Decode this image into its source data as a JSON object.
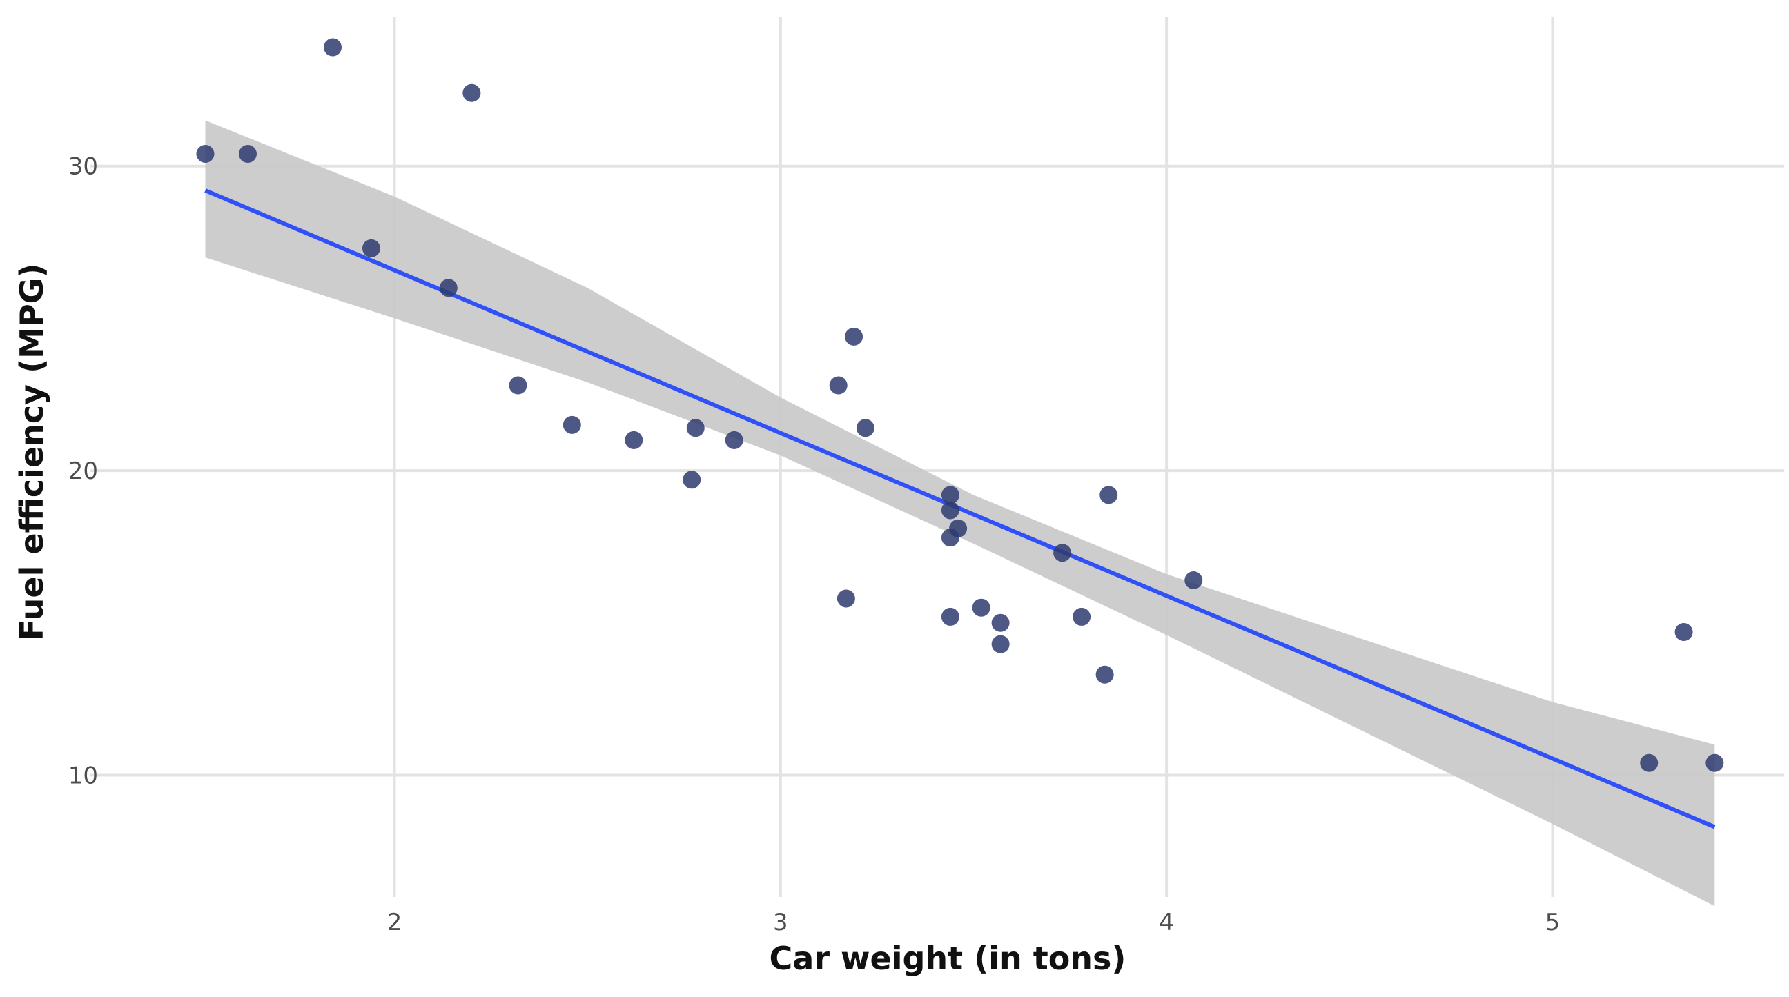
{
  "chart_data": {
    "type": "scatter",
    "xlabel": "Car weight (in tons)",
    "ylabel": "Fuel efficiency (MPG)",
    "xlim": [
      1.3,
      5.6
    ],
    "ylim": [
      6,
      35
    ],
    "x_ticks": [
      2,
      3,
      4,
      5
    ],
    "y_ticks": [
      10,
      20,
      30
    ],
    "x_tick_labels": [
      "2",
      "3",
      "4",
      "5"
    ],
    "y_tick_labels": [
      "10",
      "20",
      "30"
    ],
    "grid": true,
    "legend": "none",
    "colors": {
      "points": "#2e3b6e",
      "fit_line": "#3050f8",
      "confidence_band": "#c8c8c8",
      "grid": "#e3e3e3"
    },
    "points": [
      {
        "x": 1.51,
        "y": 30.4
      },
      {
        "x": 1.62,
        "y": 30.4
      },
      {
        "x": 1.84,
        "y": 33.9
      },
      {
        "x": 1.94,
        "y": 27.3
      },
      {
        "x": 2.14,
        "y": 26.0
      },
      {
        "x": 2.2,
        "y": 32.4
      },
      {
        "x": 2.32,
        "y": 22.8
      },
      {
        "x": 2.46,
        "y": 21.5
      },
      {
        "x": 2.62,
        "y": 21.0
      },
      {
        "x": 2.77,
        "y": 19.7
      },
      {
        "x": 2.78,
        "y": 21.4
      },
      {
        "x": 2.88,
        "y": 21.0
      },
      {
        "x": 3.15,
        "y": 22.8
      },
      {
        "x": 3.17,
        "y": 15.8
      },
      {
        "x": 3.19,
        "y": 24.4
      },
      {
        "x": 3.22,
        "y": 21.4
      },
      {
        "x": 3.44,
        "y": 18.7
      },
      {
        "x": 3.44,
        "y": 19.2
      },
      {
        "x": 3.44,
        "y": 17.8
      },
      {
        "x": 3.44,
        "y": 15.2
      },
      {
        "x": 3.46,
        "y": 18.1
      },
      {
        "x": 3.52,
        "y": 15.5
      },
      {
        "x": 3.57,
        "y": 15.0
      },
      {
        "x": 3.57,
        "y": 14.3
      },
      {
        "x": 3.73,
        "y": 17.3
      },
      {
        "x": 3.78,
        "y": 15.2
      },
      {
        "x": 3.84,
        "y": 13.3
      },
      {
        "x": 3.85,
        "y": 19.2
      },
      {
        "x": 4.07,
        "y": 16.4
      },
      {
        "x": 5.25,
        "y": 10.4
      },
      {
        "x": 5.34,
        "y": 14.7
      },
      {
        "x": 5.42,
        "y": 10.4
      }
    ],
    "fit_line": {
      "x": [
        1.51,
        5.42
      ],
      "y": [
        29.2,
        8.3
      ]
    },
    "confidence_band": {
      "x": [
        1.51,
        2.0,
        2.5,
        3.0,
        3.5,
        4.0,
        4.5,
        5.0,
        5.42
      ],
      "lower": [
        27.0,
        25.0,
        22.9,
        20.5,
        17.6,
        14.6,
        11.5,
        8.4,
        5.7
      ],
      "upper": [
        31.5,
        29.0,
        26.0,
        22.4,
        19.2,
        16.6,
        14.5,
        12.4,
        11.0
      ]
    }
  }
}
